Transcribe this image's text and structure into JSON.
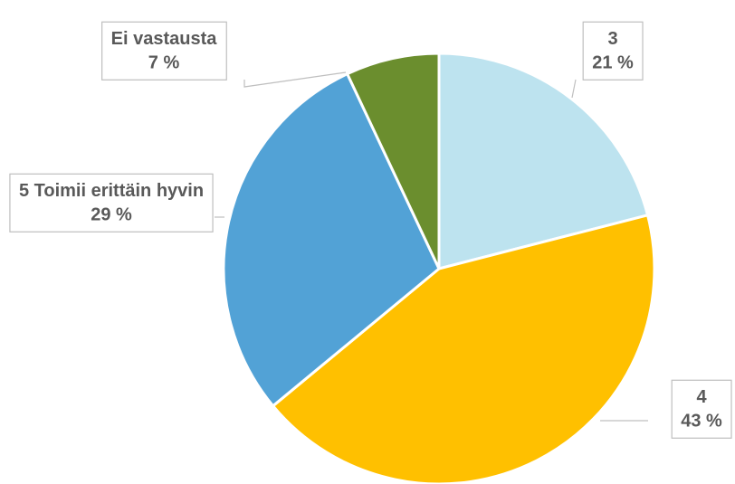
{
  "chart_data": {
    "type": "pie",
    "categories": [
      "3",
      "4",
      "5 Toimii erittäin hyvin",
      "Ei vastausta"
    ],
    "values": [
      21,
      43,
      29,
      7
    ],
    "value_labels": [
      "21 %",
      "43 %",
      "29 %",
      "7 %"
    ],
    "colors": [
      "#bde3ef",
      "#ffc000",
      "#52a2d6",
      "#6b8e2e"
    ]
  }
}
